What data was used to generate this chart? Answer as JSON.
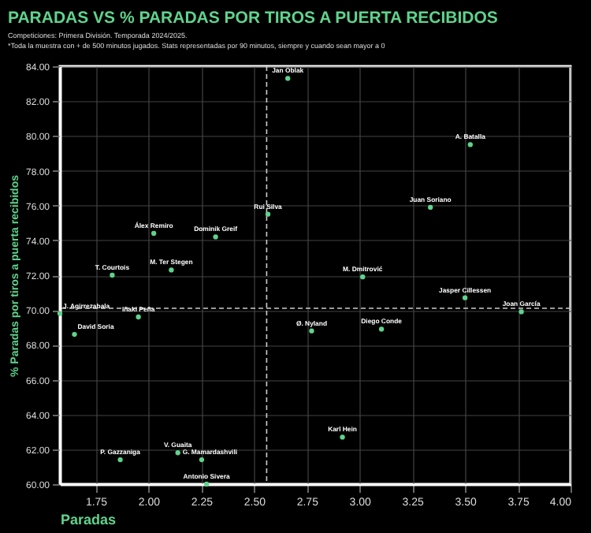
{
  "chart_data": {
    "type": "scatter",
    "title": "PARADAS VS % PARADAS POR TIROS A PUERTA RECIBIDOS",
    "subtitle": [
      "Competiciones: Primera División. Temporada 2024/2025.",
      "*Toda la muestra con + de 500 minutos jugados. Stats representadas por 90 minutos, siempre y cuando sean mayor a 0"
    ],
    "xlabel": "Paradas",
    "ylabel": "% Paradas por tiros a puerta recibidos",
    "x": [
      2.66,
      3.525,
      3.336,
      3.015,
      3.5,
      3.767,
      2.566,
      2.025,
      2.318,
      1.828,
      2.108,
      1.58,
      1.952,
      1.649,
      1.866,
      2.139,
      2.252,
      2.275,
      2.773,
      3.104,
      2.919
    ],
    "values": [
      83.3,
      79.5,
      75.9,
      71.9,
      70.7,
      69.9,
      75.5,
      74.4,
      74.2,
      72.0,
      72.3,
      69.8,
      69.6,
      68.6,
      61.4,
      61.8,
      61.4,
      60.0,
      68.8,
      68.9,
      62.7
    ],
    "color": "#5fd38d",
    "marker": "circle",
    "annotations": [
      {
        "text": "Jan Oblak",
        "x": 2.66,
        "y": 83.3
      },
      {
        "text": "A. Batalla",
        "x": 3.525,
        "y": 79.5
      },
      {
        "text": "Juan Soriano",
        "x": 3.336,
        "y": 75.9
      },
      {
        "text": "M. Dmitrović",
        "x": 3.015,
        "y": 71.9
      },
      {
        "text": "Jasper Cillessen",
        "x": 3.5,
        "y": 70.7
      },
      {
        "text": "Joan García",
        "x": 3.767,
        "y": 69.9
      },
      {
        "text": "Rui Silva",
        "x": 2.566,
        "y": 75.5
      },
      {
        "text": "Álex Remiro",
        "x": 2.025,
        "y": 74.4
      },
      {
        "text": "Dominik Greif",
        "x": 2.318,
        "y": 74.2
      },
      {
        "text": "T. Courtois",
        "x": 1.828,
        "y": 72.0
      },
      {
        "text": "M. Ter Stegen",
        "x": 2.108,
        "y": 72.3
      },
      {
        "text": "J. Agirrezabala",
        "x": 1.58,
        "y": 69.8
      },
      {
        "text": "Iñaki Peña",
        "x": 1.952,
        "y": 69.6
      },
      {
        "text": "David Soria",
        "x": 1.649,
        "y": 68.6
      },
      {
        "text": "P. Gazzaniga",
        "x": 1.866,
        "y": 61.4
      },
      {
        "text": "V. Guaita",
        "x": 2.139,
        "y": 61.8
      },
      {
        "text": "G. Mamardashvili",
        "x": 2.252,
        "y": 61.4
      },
      {
        "text": "Antonio Sivera",
        "x": 2.275,
        "y": 60.0
      },
      {
        "text": "Ø. Nyland",
        "x": 2.773,
        "y": 68.8
      },
      {
        "text": "Diego Conde",
        "x": 3.104,
        "y": 68.9
      },
      {
        "text": "Karl Hein",
        "x": 2.919,
        "y": 62.7
      }
    ],
    "xlim": [
      1.58,
      4.0
    ],
    "xticks": [
      1.75,
      {
        "value": 2,
        "label": "2.00"
      },
      2.25,
      {
        "value": 2.5,
        "label": "2.50"
      },
      2.75,
      {
        "value": 3,
        "label": "3.00"
      },
      3.25,
      {
        "value": 3.5,
        "label": "3.50"
      },
      3.75,
      {
        "value": 4,
        "label": "4.00"
      }
    ],
    "ylim": [
      60,
      84
    ],
    "yticks": [
      {
        "value": 60,
        "label": "60.00"
      },
      {
        "value": 62,
        "label": "62.00"
      },
      {
        "value": 64,
        "label": "64.00"
      },
      {
        "value": 66,
        "label": "66.00"
      },
      {
        "value": 68,
        "label": "68.00"
      },
      {
        "value": 70,
        "label": "70.00"
      },
      {
        "value": 72,
        "label": "72.00"
      },
      {
        "value": 74,
        "label": "74.00"
      },
      {
        "value": 76,
        "label": "76.00"
      },
      {
        "value": 78,
        "label": "78.00"
      },
      {
        "value": 80,
        "label": "80.00"
      },
      {
        "value": 82,
        "label": "82.00"
      },
      {
        "value": 84,
        "label": "84.00"
      }
    ],
    "ref_lines": [
      {
        "axis": "x",
        "value": 2.56,
        "color": "#cccccc",
        "line_style": "dashed"
      },
      {
        "axis": "y",
        "value": 70.1,
        "color": "#cccccc",
        "line_style": "dashed"
      }
    ],
    "grid": true
  }
}
